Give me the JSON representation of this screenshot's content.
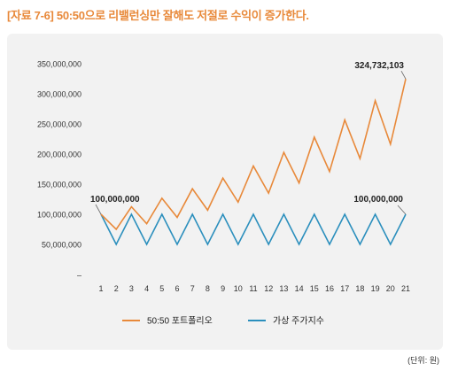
{
  "title": "[자료 7-6] 50:50으로 리밸런싱만 잘해도 저절로 수익이 증가한다.",
  "unit_note": "(단위: 원)",
  "chart_data": {
    "type": "line",
    "title": "[자료 7-6] 50:50으로 리밸런싱만 잘해도 저절로 수익이 증가한다.",
    "xlabel": "",
    "ylabel": "",
    "x": [
      1,
      2,
      3,
      4,
      5,
      6,
      7,
      8,
      9,
      10,
      11,
      12,
      13,
      14,
      15,
      16,
      17,
      18,
      19,
      20,
      21
    ],
    "ylim": [
      0,
      350000000
    ],
    "yticks": [
      {
        "value": 0,
        "label": "–"
      },
      {
        "value": 50000000,
        "label": "50,000,000"
      },
      {
        "value": 100000000,
        "label": "100,000,000"
      },
      {
        "value": 150000000,
        "label": "150,000,000"
      },
      {
        "value": 200000000,
        "label": "200,000,000"
      },
      {
        "value": 250000000,
        "label": "250,000,000"
      },
      {
        "value": 300000000,
        "label": "300,000,000"
      },
      {
        "value": 350000000,
        "label": "350,000,000"
      }
    ],
    "grid": false,
    "legend_position": "bottom",
    "series": [
      {
        "name": "50:50 포트폴리오",
        "color": "#e8893a",
        "values": [
          100000000,
          75000000,
          112500000,
          84375000,
          126562500,
          94921875,
          142382813,
          106787109,
          160180664,
          120135498,
          180203247,
          135152435,
          202728653,
          152046490,
          228069735,
          171052301,
          256578452,
          192433839,
          288650758,
          216488069,
          324732103
        ]
      },
      {
        "name": "가상 주가지수",
        "color": "#2b8fbd",
        "values": [
          100000000,
          50000000,
          100000000,
          50000000,
          100000000,
          50000000,
          100000000,
          50000000,
          100000000,
          50000000,
          100000000,
          50000000,
          100000000,
          50000000,
          100000000,
          50000000,
          100000000,
          50000000,
          100000000,
          50000000,
          100000000
        ]
      }
    ],
    "annotations": [
      {
        "text": "100,000,000",
        "x": 1,
        "y": 100000000
      },
      {
        "text": "100,000,000",
        "x": 21,
        "y": 100000000
      },
      {
        "text": "324,732,103",
        "x": 21,
        "y": 324732103
      }
    ]
  }
}
